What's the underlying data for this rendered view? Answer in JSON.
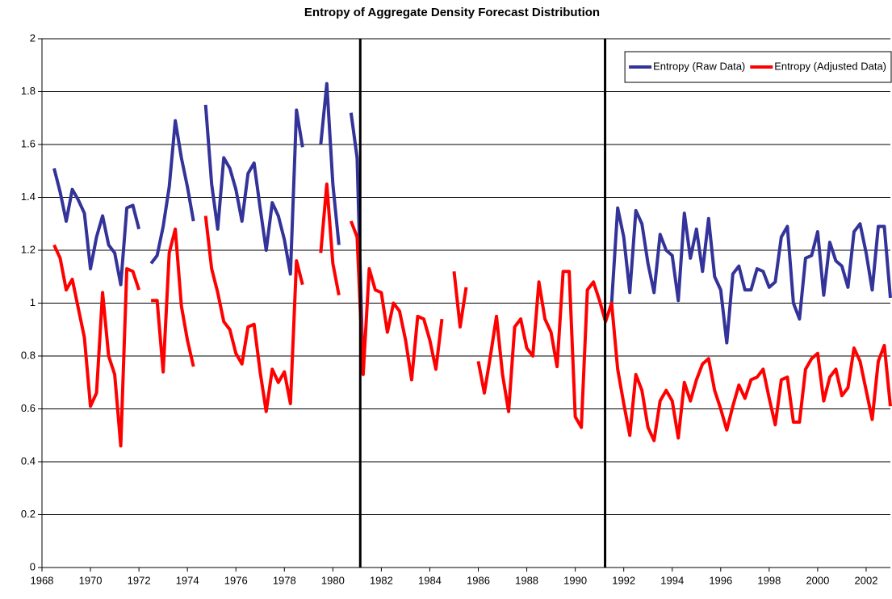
{
  "chart_data": {
    "type": "line",
    "title": "Entropy of Aggregate Density Forecast Distribution",
    "x": [
      1968.5,
      1968.75,
      1969,
      1969.25,
      1969.5,
      1969.75,
      1970,
      1970.25,
      1970.5,
      1970.75,
      1971,
      1971.25,
      1971.5,
      1971.75,
      1972,
      1972.25,
      1972.5,
      1972.75,
      1973,
      1973.25,
      1973.5,
      1973.75,
      1974,
      1974.25,
      1974.5,
      1974.75,
      1975,
      1975.25,
      1975.5,
      1975.75,
      1976,
      1976.25,
      1976.5,
      1976.75,
      1977,
      1977.25,
      1977.5,
      1977.75,
      1978,
      1978.25,
      1978.5,
      1978.75,
      1979,
      1979.25,
      1979.5,
      1979.75,
      1980,
      1980.25,
      1980.5,
      1980.75,
      1981,
      1981.25,
      1981.5,
      1981.75,
      1982,
      1982.25,
      1982.5,
      1982.75,
      1983,
      1983.25,
      1983.5,
      1983.75,
      1984,
      1984.25,
      1984.5,
      1984.75,
      1985,
      1985.25,
      1985.5,
      1985.75,
      1986,
      1986.25,
      1986.5,
      1986.75,
      1987,
      1987.25,
      1987.5,
      1987.75,
      1988,
      1988.25,
      1988.5,
      1988.75,
      1989,
      1989.25,
      1989.5,
      1989.75,
      1990,
      1990.25,
      1990.5,
      1990.75,
      1991,
      1991.25,
      1991.5,
      1991.75,
      1992,
      1992.25,
      1992.5,
      1992.75,
      1993,
      1993.25,
      1993.5,
      1993.75,
      1994,
      1994.25,
      1994.5,
      1994.75,
      1995,
      1995.25,
      1995.5,
      1995.75,
      1996,
      1996.25,
      1996.5,
      1996.75,
      1997,
      1997.25,
      1997.5,
      1997.75,
      1998,
      1998.25,
      1998.5,
      1998.75,
      1999,
      1999.25,
      1999.5,
      1999.75,
      2000,
      2000.25,
      2000.5,
      2000.75,
      2001,
      2001.25,
      2001.5,
      2001.75,
      2002,
      2002.25,
      2002.5,
      2002.75,
      2003
    ],
    "series": [
      {
        "name": "Entropy (Raw Data)",
        "color": "#333399",
        "values": [
          1.51,
          1.42,
          1.31,
          1.43,
          1.39,
          1.34,
          1.13,
          1.25,
          1.33,
          1.22,
          1.19,
          1.07,
          1.36,
          1.37,
          1.28,
          null,
          1.15,
          1.18,
          1.29,
          1.44,
          1.69,
          1.55,
          1.44,
          1.31,
          null,
          1.75,
          1.45,
          1.28,
          1.55,
          1.51,
          1.43,
          1.31,
          1.49,
          1.53,
          1.36,
          1.2,
          1.38,
          1.33,
          1.24,
          1.11,
          1.73,
          1.59,
          null,
          null,
          1.6,
          1.83,
          1.45,
          1.22,
          null,
          1.72,
          1.55,
          0.73,
          null,
          null,
          null,
          null,
          null,
          null,
          null,
          null,
          null,
          null,
          null,
          null,
          null,
          null,
          null,
          null,
          null,
          null,
          null,
          null,
          null,
          null,
          null,
          null,
          null,
          null,
          null,
          null,
          null,
          null,
          null,
          null,
          null,
          null,
          null,
          null,
          null,
          null,
          null,
          null,
          1.0,
          1.36,
          1.25,
          1.04,
          1.35,
          1.3,
          1.15,
          1.04,
          1.26,
          1.2,
          1.18,
          1.01,
          1.34,
          1.17,
          1.28,
          1.12,
          1.32,
          1.1,
          1.05,
          0.85,
          1.11,
          1.14,
          1.05,
          1.05,
          1.13,
          1.12,
          1.06,
          1.08,
          1.25,
          1.29,
          1.0,
          0.94,
          1.17,
          1.18,
          1.27,
          1.03,
          1.23,
          1.16,
          1.14,
          1.06,
          1.27,
          1.3,
          1.19,
          1.05,
          1.29,
          1.29,
          1.02
        ]
      },
      {
        "name": "Entropy (Adjusted Data)",
        "color": "#ff0000",
        "values": [
          1.22,
          1.17,
          1.05,
          1.09,
          0.98,
          0.87,
          0.61,
          0.66,
          1.04,
          0.8,
          0.73,
          0.46,
          1.13,
          1.12,
          1.05,
          null,
          1.01,
          1.01,
          0.74,
          1.19,
          1.28,
          0.99,
          0.86,
          0.76,
          null,
          1.33,
          1.13,
          1.04,
          0.93,
          0.9,
          0.81,
          0.77,
          0.91,
          0.92,
          0.74,
          0.59,
          0.75,
          0.7,
          0.74,
          0.62,
          1.16,
          1.07,
          null,
          null,
          1.19,
          1.45,
          1.15,
          1.03,
          null,
          1.31,
          1.25,
          0.73,
          1.13,
          1.05,
          1.04,
          0.89,
          1.0,
          0.97,
          0.86,
          0.71,
          0.95,
          0.94,
          0.86,
          0.75,
          0.94,
          null,
          1.12,
          0.91,
          1.06,
          null,
          0.78,
          0.66,
          0.8,
          0.95,
          0.73,
          0.59,
          0.91,
          0.94,
          0.83,
          0.8,
          1.08,
          0.94,
          0.89,
          0.76,
          1.12,
          1.12,
          0.57,
          0.53,
          1.05,
          1.08,
          1.01,
          0.93,
          1.0,
          0.75,
          0.62,
          0.5,
          0.73,
          0.67,
          0.53,
          0.48,
          0.63,
          0.67,
          0.63,
          0.49,
          0.7,
          0.63,
          0.71,
          0.77,
          0.79,
          0.67,
          0.6,
          0.52,
          0.61,
          0.69,
          0.64,
          0.71,
          0.72,
          0.75,
          0.64,
          0.54,
          0.71,
          0.72,
          0.55,
          0.55,
          0.75,
          0.79,
          0.81,
          0.63,
          0.72,
          0.75,
          0.65,
          0.68,
          0.83,
          0.78,
          0.67,
          0.56,
          0.78,
          0.84,
          0.61
        ]
      }
    ],
    "vlines": [
      1981.13,
      1991.23
    ],
    "xlim": [
      1968,
      2003
    ],
    "xticks": [
      1968,
      1970,
      1972,
      1974,
      1976,
      1978,
      1980,
      1982,
      1984,
      1986,
      1988,
      1990,
      1992,
      1994,
      1996,
      1998,
      2000,
      2002
    ],
    "ylim": [
      0,
      2
    ],
    "yticks": [
      0,
      0.2,
      0.4,
      0.6,
      0.8,
      1,
      1.2,
      1.4,
      1.6,
      1.8,
      2
    ],
    "grid": true,
    "legend": "top-right"
  }
}
